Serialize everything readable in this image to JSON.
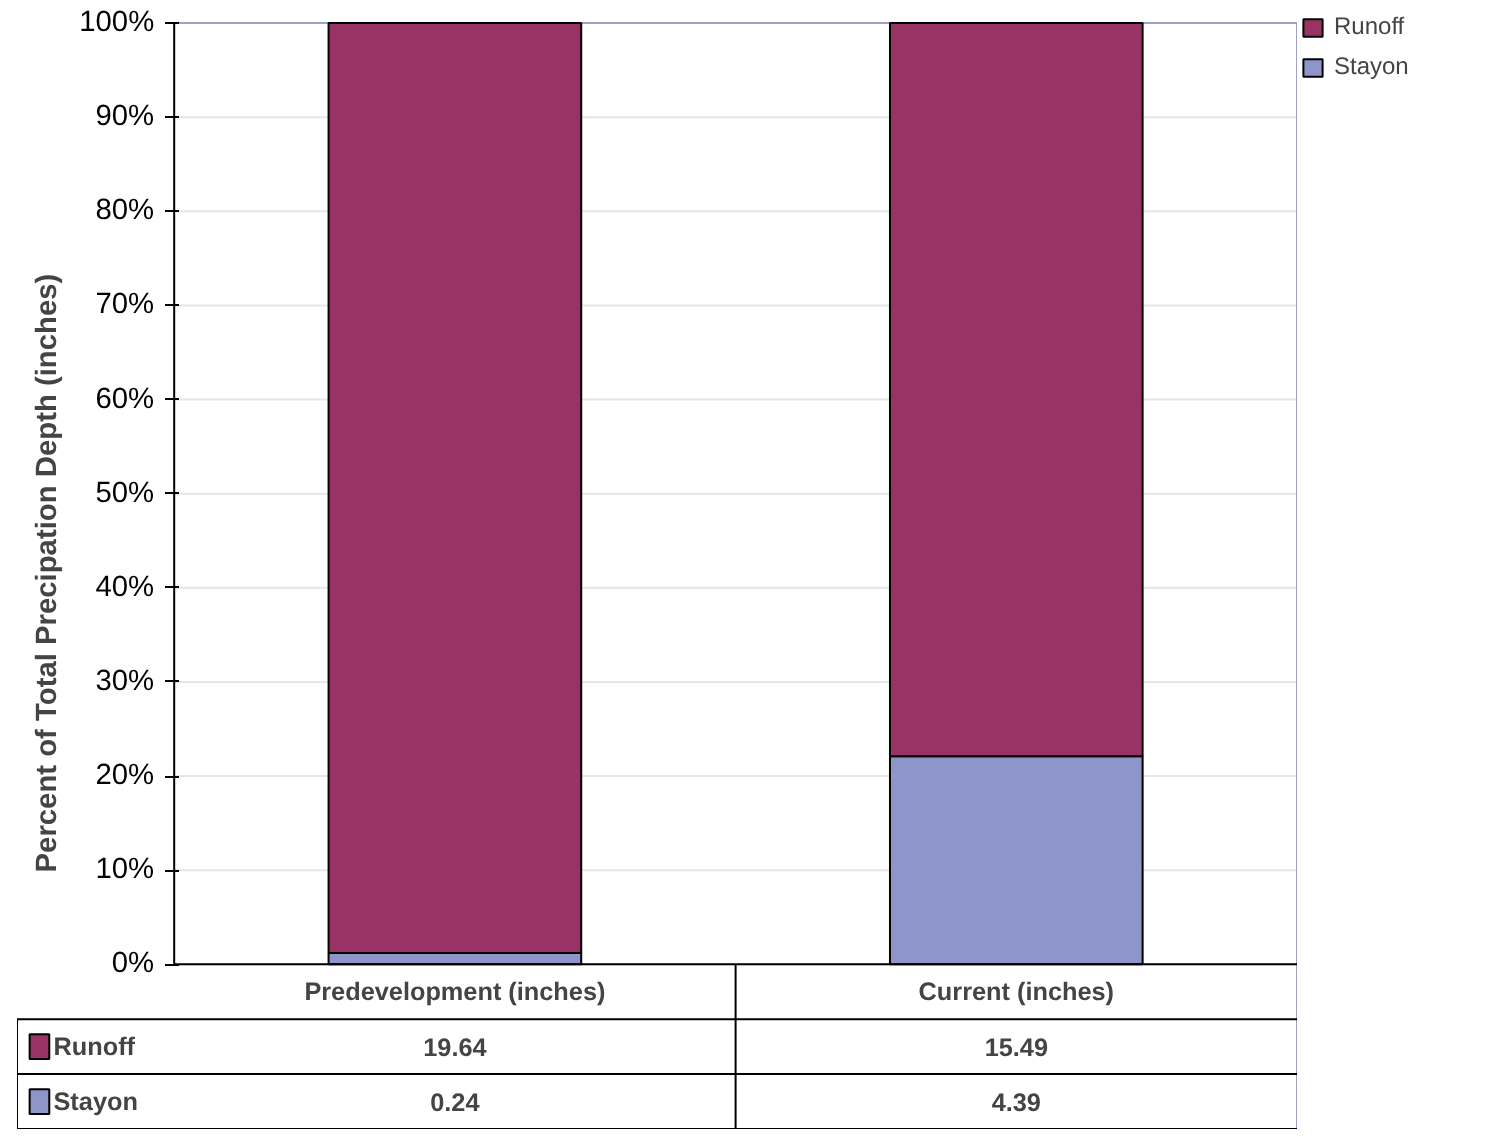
{
  "chart_data": {
    "type": "bar",
    "stacked": true,
    "categories": [
      "Predevelopment (inches)",
      "Current (inches)"
    ],
    "series": [
      {
        "name": "Stayon",
        "color": "#8e96c9",
        "values": [
          1.2,
          22.1
        ]
      },
      {
        "name": "Runoff",
        "color": "#993366",
        "values": [
          98.8,
          77.9
        ]
      }
    ],
    "ylabel": "Percent of Total Precipation Depth  (inches)",
    "ylim": [
      0,
      100
    ],
    "yticks": [
      {
        "value": 0,
        "label": "0%"
      },
      {
        "value": 10,
        "label": "10%"
      },
      {
        "value": 20,
        "label": "20%"
      },
      {
        "value": 30,
        "label": "30%"
      },
      {
        "value": 40,
        "label": "40%"
      },
      {
        "value": 50,
        "label": "50%"
      },
      {
        "value": 60,
        "label": "60%"
      },
      {
        "value": 70,
        "label": "70%"
      },
      {
        "value": 80,
        "label": "80%"
      },
      {
        "value": 90,
        "label": "90%"
      },
      {
        "value": 100,
        "label": "100%"
      }
    ],
    "grid": "y",
    "legend": "right",
    "annotations": [
      "19.64",
      "15.49",
      "0.24",
      "4.39"
    ]
  }
}
